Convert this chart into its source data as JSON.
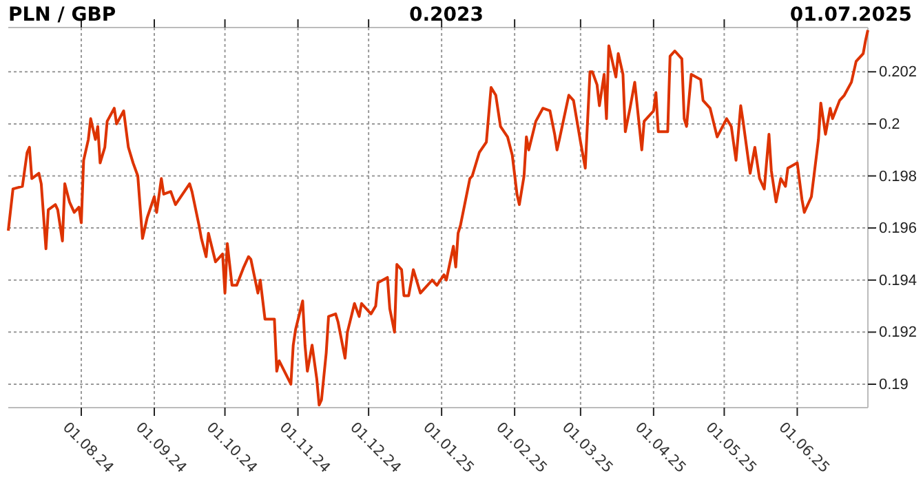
{
  "chart_data": {
    "type": "line",
    "title": "PLN / GBP",
    "subtitle": "0.2023",
    "annotations": [
      "01.07.2025"
    ],
    "x": [
      "2024-07-01",
      "2024-07-03",
      "2024-07-07",
      "2024-07-09",
      "2024-07-10",
      "2024-07-11",
      "2024-07-14",
      "2024-07-15",
      "2024-07-17",
      "2024-07-18",
      "2024-07-21",
      "2024-07-22",
      "2024-07-24",
      "2024-07-25",
      "2024-07-27",
      "2024-07-29",
      "2024-07-31",
      "2024-08-01",
      "2024-08-02",
      "2024-08-04",
      "2024-08-05",
      "2024-08-07",
      "2024-08-08",
      "2024-08-09",
      "2024-08-11",
      "2024-08-12",
      "2024-08-15",
      "2024-08-16",
      "2024-08-19",
      "2024-08-21",
      "2024-08-23",
      "2024-08-25",
      "2024-08-27",
      "2024-08-29",
      "2024-09-01",
      "2024-09-02",
      "2024-09-04",
      "2024-09-05",
      "2024-09-08",
      "2024-09-10",
      "2024-09-16",
      "2024-09-17",
      "2024-09-20",
      "2024-09-21",
      "2024-09-23",
      "2024-09-24",
      "2024-09-27",
      "2024-09-30",
      "2024-10-01",
      "2024-10-02",
      "2024-10-04",
      "2024-10-06",
      "2024-10-09",
      "2024-10-11",
      "2024-10-12",
      "2024-10-15",
      "2024-10-16",
      "2024-10-18",
      "2024-10-22",
      "2024-10-23",
      "2024-10-24",
      "2024-10-29",
      "2024-10-30",
      "2024-10-31",
      "2024-11-03",
      "2024-11-04",
      "2024-11-05",
      "2024-11-07",
      "2024-11-09",
      "2024-11-10",
      "2024-11-11",
      "2024-11-13",
      "2024-11-14",
      "2024-11-17",
      "2024-11-18",
      "2024-11-21",
      "2024-11-22",
      "2024-11-25",
      "2024-11-27",
      "2024-11-28",
      "2024-12-02",
      "2024-12-04",
      "2024-12-05",
      "2024-12-09",
      "2024-12-10",
      "2024-12-12",
      "2024-12-13",
      "2024-12-15",
      "2024-12-16",
      "2024-12-18",
      "2024-12-20",
      "2024-12-23",
      "2024-12-28",
      "2024-12-30",
      "2025-01-02",
      "2025-01-03",
      "2025-01-06",
      "2025-01-07",
      "2025-01-08",
      "2025-01-09",
      "2025-01-13",
      "2025-01-14",
      "2025-01-17",
      "2025-01-20",
      "2025-01-22",
      "2025-01-24",
      "2025-01-26",
      "2025-01-29",
      "2025-01-31",
      "2025-02-02",
      "2025-02-03",
      "2025-02-05",
      "2025-02-06",
      "2025-02-07",
      "2025-02-10",
      "2025-02-13",
      "2025-02-16",
      "2025-02-18",
      "2025-02-19",
      "2025-02-20",
      "2025-02-24",
      "2025-02-26",
      "2025-03-01",
      "2025-03-03",
      "2025-03-05",
      "2025-03-06",
      "2025-03-08",
      "2025-03-09",
      "2025-03-11",
      "2025-03-12",
      "2025-03-13",
      "2025-03-14",
      "2025-03-16",
      "2025-03-17",
      "2025-03-19",
      "2025-03-20",
      "2025-03-22",
      "2025-03-24",
      "2025-03-27",
      "2025-03-28",
      "2025-04-01",
      "2025-04-02",
      "2025-04-03",
      "2025-04-07",
      "2025-04-08",
      "2025-04-10",
      "2025-04-13",
      "2025-04-14",
      "2025-04-15",
      "2025-04-17",
      "2025-04-21",
      "2025-04-22",
      "2025-04-25",
      "2025-04-28",
      "2025-05-02",
      "2025-05-04",
      "2025-05-06",
      "2025-05-08",
      "2025-05-09",
      "2025-05-12",
      "2025-05-14",
      "2025-05-16",
      "2025-05-18",
      "2025-05-20",
      "2025-05-21",
      "2025-05-23",
      "2025-05-25",
      "2025-05-27",
      "2025-05-28",
      "2025-06-01",
      "2025-06-03",
      "2025-06-04",
      "2025-06-07",
      "2025-06-10",
      "2025-06-11",
      "2025-06-13",
      "2025-06-15",
      "2025-06-16",
      "2025-06-19",
      "2025-06-21",
      "2025-06-24",
      "2025-06-26",
      "2025-06-29",
      "2025-06-30",
      "2025-07-01"
    ],
    "series": [
      {
        "color": "#dd3300",
        "values": [
          0.1959,
          0.1975,
          0.1976,
          0.1989,
          0.1991,
          0.1979,
          0.1981,
          0.1977,
          0.1952,
          0.1967,
          0.1969,
          0.1967,
          0.1955,
          0.1977,
          0.197,
          0.1966,
          0.1968,
          0.1962,
          0.1986,
          0.1994,
          0.2002,
          0.1994,
          0.1999,
          0.1985,
          0.1991,
          0.2001,
          0.2006,
          0.2,
          0.2005,
          0.1991,
          0.1985,
          0.198,
          0.1956,
          0.1964,
          0.1972,
          0.1966,
          0.1979,
          0.1973,
          0.1974,
          0.1969,
          0.1977,
          0.1974,
          0.1961,
          0.1956,
          0.1949,
          0.1958,
          0.1947,
          0.195,
          0.1935,
          0.1954,
          0.1938,
          0.1938,
          0.1945,
          0.1949,
          0.1948,
          0.1935,
          0.194,
          0.1925,
          0.1925,
          0.1905,
          0.1909,
          0.19,
          0.1915,
          0.1921,
          0.1932,
          0.1915,
          0.1905,
          0.1915,
          0.1902,
          0.1892,
          0.1894,
          0.1912,
          0.1926,
          0.1927,
          0.1924,
          0.191,
          0.192,
          0.1931,
          0.1926,
          0.1931,
          0.1927,
          0.193,
          0.1939,
          0.1941,
          0.1929,
          0.192,
          0.1946,
          0.1944,
          0.1934,
          0.1934,
          0.1944,
          0.1935,
          0.194,
          0.1938,
          0.1942,
          0.194,
          0.1953,
          0.1945,
          0.1958,
          0.1961,
          0.1979,
          0.198,
          0.1989,
          0.1993,
          0.2014,
          0.2011,
          0.1999,
          0.1995,
          0.1988,
          0.1973,
          0.1969,
          0.198,
          0.1995,
          0.199,
          0.2001,
          0.2006,
          0.2005,
          0.1996,
          0.199,
          0.1994,
          0.2011,
          0.2009,
          0.1993,
          0.1983,
          0.202,
          0.202,
          0.2015,
          0.2007,
          0.2019,
          0.2002,
          0.203,
          0.2026,
          0.2018,
          0.2027,
          0.2019,
          0.1997,
          0.2006,
          0.2016,
          0.199,
          0.2001,
          0.2005,
          0.2012,
          0.1997,
          0.1997,
          0.2026,
          0.2028,
          0.2025,
          0.2002,
          0.1999,
          0.2019,
          0.2017,
          0.2009,
          0.2006,
          0.1995,
          0.2002,
          0.1999,
          0.1986,
          0.2007,
          0.2001,
          0.1981,
          0.1991,
          0.1979,
          0.1975,
          0.1996,
          0.1982,
          0.197,
          0.1979,
          0.1976,
          0.1983,
          0.1985,
          0.1971,
          0.1966,
          0.1972,
          0.1994,
          0.2008,
          0.1996,
          0.2006,
          0.2002,
          0.2009,
          0.2011,
          0.2016,
          0.2024,
          0.2027,
          0.2032,
          0.2036
        ]
      }
    ],
    "xlim": [
      "2024-07-01",
      "2025-07-01"
    ],
    "xticks": [
      {
        "value": "2024-08-01",
        "label": "01.08.24"
      },
      {
        "value": "2024-09-01",
        "label": "01.09.24"
      },
      {
        "value": "2024-10-01",
        "label": "01.10.24"
      },
      {
        "value": "2024-11-01",
        "label": "01.11.24"
      },
      {
        "value": "2024-12-01",
        "label": "01.12.24"
      },
      {
        "value": "2025-01-01",
        "label": "01.01.25"
      },
      {
        "value": "2025-02-01",
        "label": "01.02.25"
      },
      {
        "value": "2025-03-01",
        "label": "01.03.25"
      },
      {
        "value": "2025-04-01",
        "label": "01.04.25"
      },
      {
        "value": "2025-05-01",
        "label": "01.05.25"
      },
      {
        "value": "2025-06-01",
        "label": "01.06.25"
      }
    ],
    "ylim": [
      0.1891,
      0.2037
    ],
    "yticks": [
      0.19,
      0.192,
      0.194,
      0.196,
      0.198,
      0.2,
      0.202
    ],
    "grid": true
  }
}
